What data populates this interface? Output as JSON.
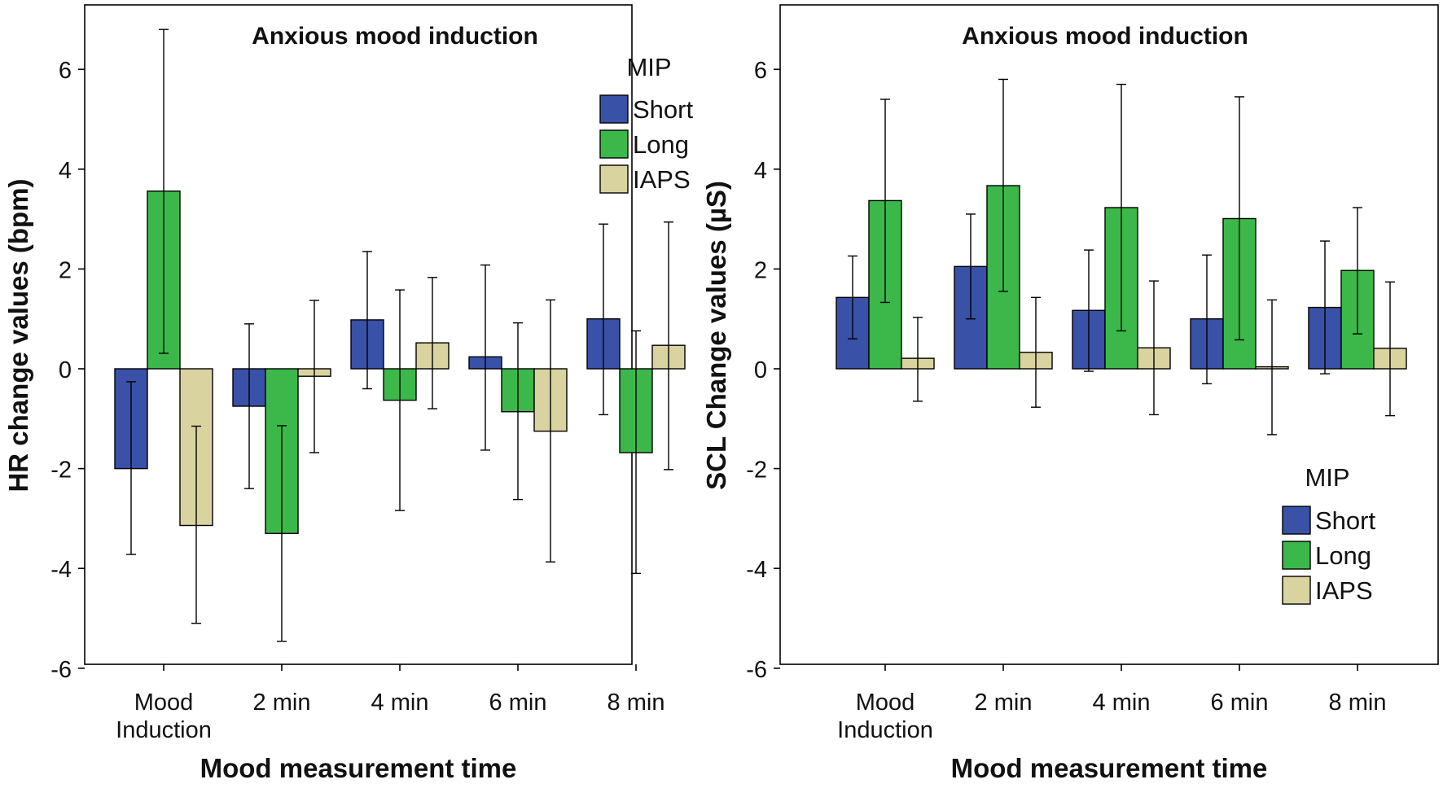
{
  "colors": {
    "Short": "#3a51a8",
    "Long": "#3cb84a",
    "IAPS": "#d9d3a0",
    "axis": "#000000",
    "frame_fill": "#ffffff"
  },
  "chart_data": [
    {
      "type": "bar",
      "title": "Anxious mood induction",
      "xlabel": "Mood measurement time",
      "ylabel": "HR change values (bpm)",
      "ylim": [
        -6,
        7.3
      ],
      "yticks": [
        6,
        4,
        2,
        0,
        -2,
        -4,
        -6
      ],
      "ytick_labels": [
        "6",
        "4",
        "2",
        "0",
        "-2",
        "-4",
        "-6"
      ],
      "categories": [
        [
          "Mood",
          "Induction"
        ],
        [
          "2 min"
        ],
        [
          "4 min"
        ],
        [
          "6 min"
        ],
        [
          "8 min"
        ]
      ],
      "legend": {
        "title": "MIP",
        "position": "top-right",
        "entries": [
          "Short",
          "Long",
          "IAPS"
        ]
      },
      "series": [
        {
          "name": "Short",
          "values": [
            -2.0,
            -0.75,
            0.98,
            0.24,
            1.0
          ],
          "err_low": [
            -3.72,
            -2.4,
            -0.4,
            -1.63,
            -0.92
          ],
          "err_high": [
            -0.26,
            0.9,
            2.35,
            2.08,
            2.9
          ]
        },
        {
          "name": "Long",
          "values": [
            3.56,
            -3.3,
            -0.63,
            -0.86,
            -1.68
          ],
          "err_low": [
            0.31,
            -5.46,
            -2.84,
            -2.62,
            -4.1
          ],
          "err_high": [
            6.8,
            -1.14,
            1.58,
            0.92,
            0.76
          ]
        },
        {
          "name": "IAPS",
          "values": [
            -3.14,
            -0.15,
            0.52,
            -1.25,
            0.47
          ],
          "err_low": [
            -5.1,
            -1.68,
            -0.8,
            -3.87,
            -2.02
          ],
          "err_high": [
            -1.15,
            1.37,
            1.83,
            1.38,
            2.94
          ]
        }
      ]
    },
    {
      "type": "bar",
      "title": "Anxious mood induction",
      "xlabel": "Mood measurement time",
      "ylabel": "SCL Change values (µS)",
      "ylim": [
        -6,
        7.3
      ],
      "yticks": [
        6,
        4,
        2,
        0,
        -2,
        -4,
        -6
      ],
      "ytick_labels": [
        "6",
        "4",
        "2",
        "0",
        "-2",
        "-4",
        "-6"
      ],
      "categories": [
        [
          "Mood",
          "Induction"
        ],
        [
          "2 min"
        ],
        [
          "4 min"
        ],
        [
          "6 min"
        ],
        [
          "8 min"
        ]
      ],
      "legend": {
        "title": "MIP",
        "position": "bottom-right",
        "entries": [
          "Short",
          "Long",
          "IAPS"
        ]
      },
      "series": [
        {
          "name": "Short",
          "values": [
            1.43,
            2.05,
            1.17,
            1.0,
            1.23
          ],
          "err_low": [
            0.6,
            1.0,
            -0.05,
            -0.3,
            -0.1
          ],
          "err_high": [
            2.26,
            3.1,
            2.38,
            2.28,
            2.56
          ]
        },
        {
          "name": "Long",
          "values": [
            3.37,
            3.67,
            3.23,
            3.01,
            1.97
          ],
          "err_low": [
            1.33,
            1.55,
            0.76,
            0.58,
            0.7
          ],
          "err_high": [
            5.4,
            5.8,
            5.7,
            5.45,
            3.23
          ]
        },
        {
          "name": "IAPS",
          "values": [
            0.21,
            0.33,
            0.42,
            0.04,
            0.41
          ],
          "err_low": [
            -0.65,
            -0.77,
            -0.92,
            -1.32,
            -0.94
          ],
          "err_high": [
            1.03,
            1.43,
            1.76,
            1.38,
            1.74
          ]
        }
      ]
    }
  ]
}
